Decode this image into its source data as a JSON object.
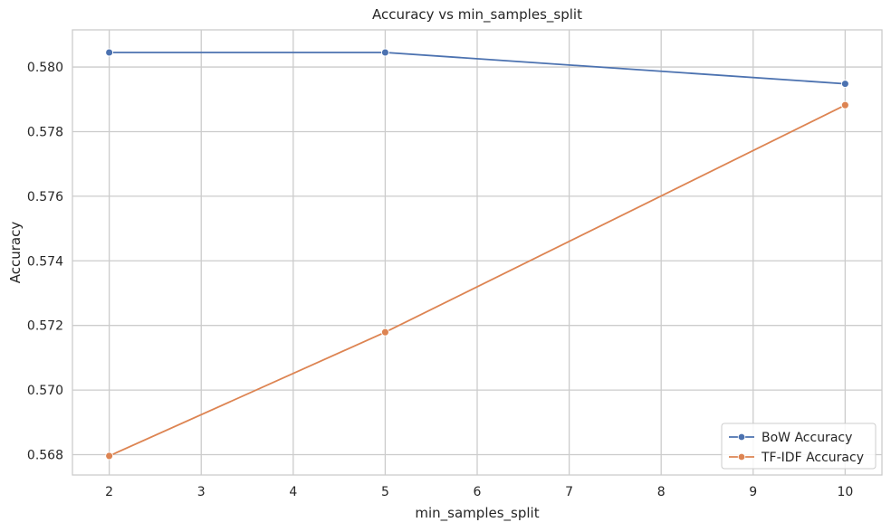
{
  "chart_data": {
    "type": "line",
    "title": "Accuracy vs min_samples_split",
    "xlabel": "min_samples_split",
    "ylabel": "Accuracy",
    "x": [
      2,
      5,
      10
    ],
    "xlim": [
      1.6,
      10.4
    ],
    "ylim": [
      0.56737,
      0.58115
    ],
    "xticks": [
      2,
      3,
      4,
      5,
      6,
      7,
      8,
      9,
      10
    ],
    "xtick_labels": [
      "2",
      "3",
      "4",
      "5",
      "6",
      "7",
      "8",
      "9",
      "10"
    ],
    "yticks": [
      0.568,
      0.57,
      0.572,
      0.574,
      0.576,
      0.578,
      0.58
    ],
    "ytick_labels": [
      "0.568",
      "0.570",
      "0.572",
      "0.574",
      "0.576",
      "0.578",
      "0.580"
    ],
    "grid": true,
    "legend_position": "bottom-right",
    "series": [
      {
        "name": "BoW Accuracy",
        "values": [
          0.58045,
          0.58045,
          0.57948
        ],
        "color": "#4c72b0",
        "marker": "circle"
      },
      {
        "name": "TF-IDF Accuracy",
        "values": [
          0.56796,
          0.57179,
          0.57882
        ],
        "color": "#dd8452",
        "marker": "circle"
      }
    ]
  }
}
